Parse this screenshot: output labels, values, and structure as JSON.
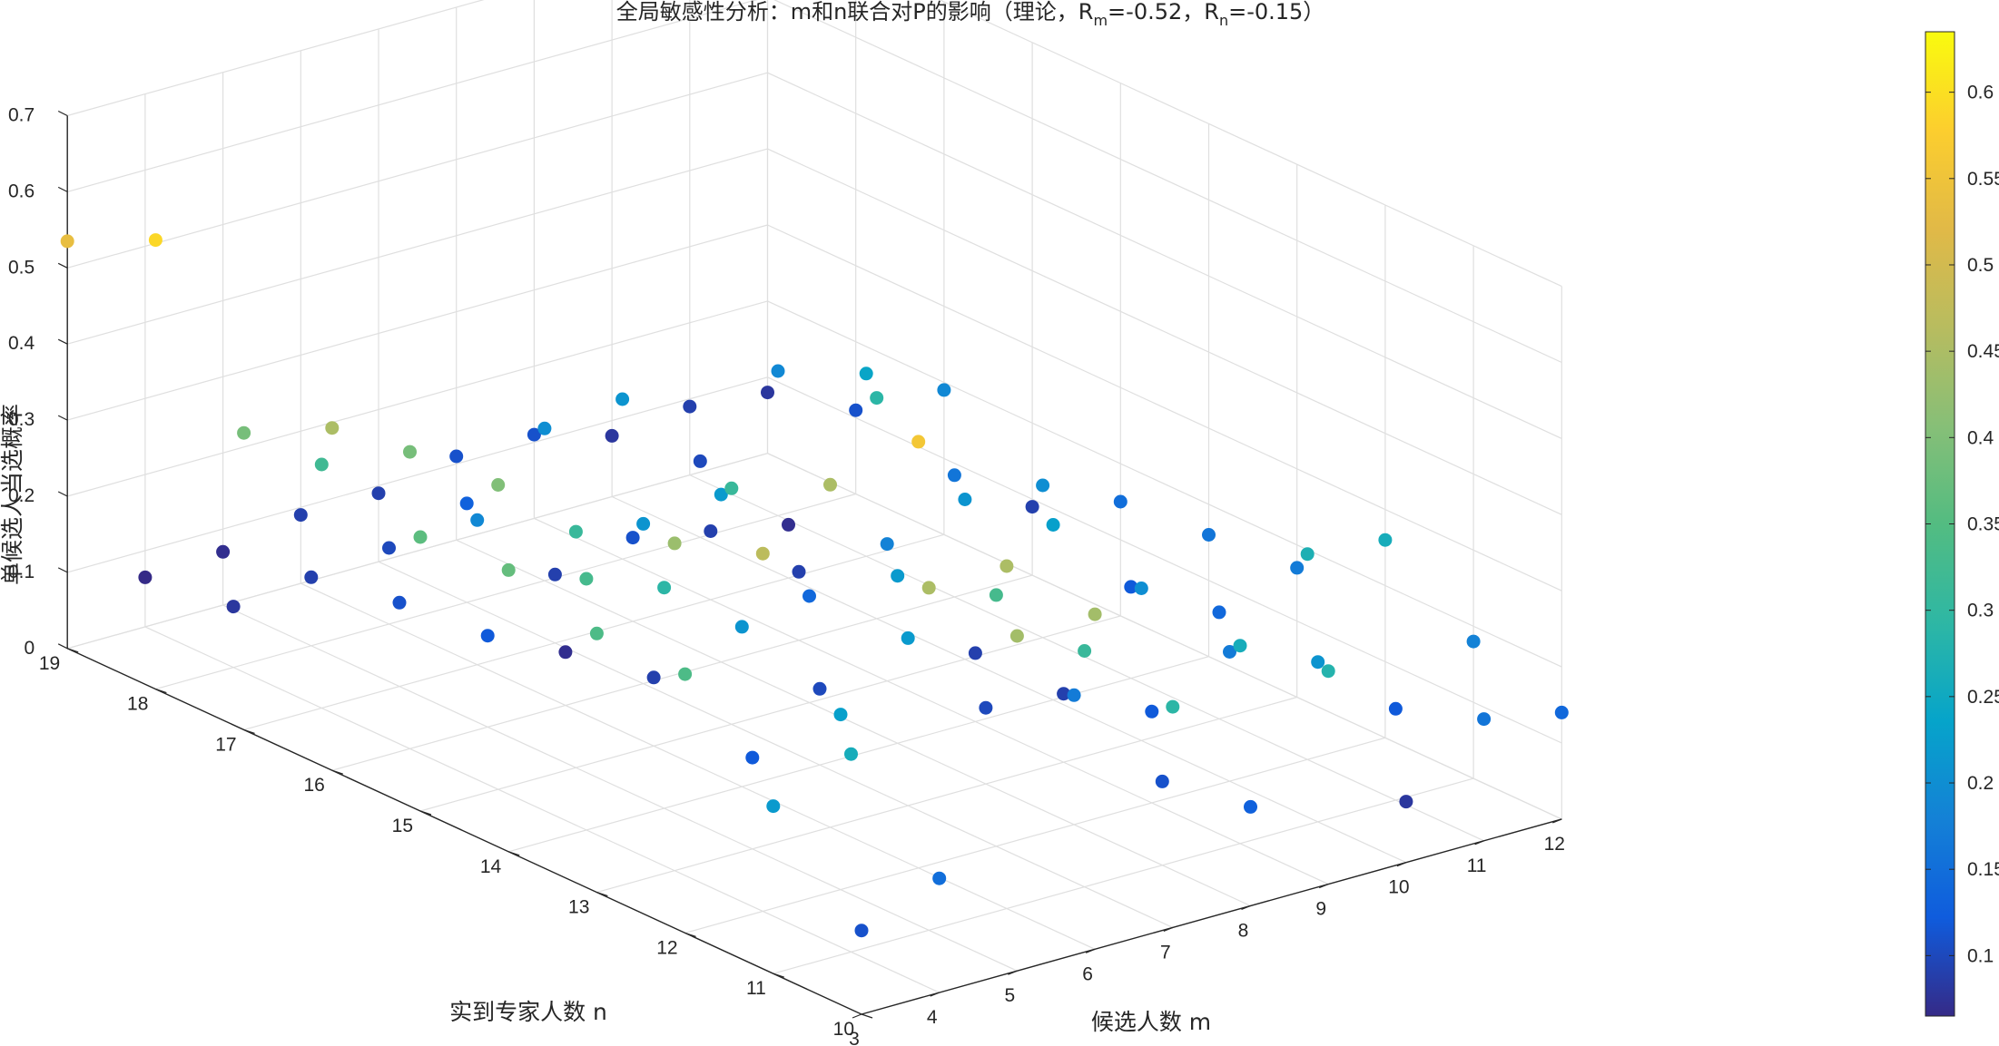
{
  "chart_data": {
    "type": "scatter3d",
    "title": {
      "prefix": "全局敏感性分析：m和n联合对P的影响（理论，R",
      "sub_m": "m",
      "mid": "=-0.52，R",
      "sub_n": "n",
      "suffix": "=-0.15）"
    },
    "xlabel": "候选人数 m",
    "ylabel": "实到专家人数 n",
    "zlabel": "单候选人当选概率",
    "xlim": [
      3,
      12
    ],
    "ylim": [
      10,
      19
    ],
    "zlim": [
      0,
      0.7
    ],
    "x_ticks": [
      "3",
      "4",
      "5",
      "6",
      "7",
      "8",
      "9",
      "10",
      "11",
      "12"
    ],
    "y_ticks": [
      "10",
      "11",
      "12",
      "13",
      "14",
      "15",
      "16",
      "17",
      "18",
      "19"
    ],
    "z_ticks": [
      "0",
      "0.1",
      "0.2",
      "0.3",
      "0.4",
      "0.5",
      "0.6",
      "0.7"
    ],
    "grid": true,
    "colormap": "parula",
    "colorbar": {
      "location": "right",
      "range": [
        0.065,
        0.635
      ],
      "ticks": [
        "0.1",
        "0.15",
        "0.2",
        "0.25",
        "0.3",
        "0.35",
        "0.4",
        "0.45",
        "0.5",
        "0.55",
        "0.6"
      ]
    },
    "points": [
      [
        3,
        19,
        0.535
      ],
      [
        3,
        18,
        0.59
      ],
      [
        3,
        17,
        0.39
      ],
      [
        3,
        16,
        0.45
      ],
      [
        3,
        15,
        0.36
      ],
      [
        3,
        14,
        0.37
      ],
      [
        3,
        13,
        0.34
      ],
      [
        3,
        12,
        0.34
      ],
      [
        3,
        11,
        0.22
      ],
      [
        3,
        10,
        0.11
      ],
      [
        4,
        19,
        0.065
      ],
      [
        4,
        18,
        0.08
      ],
      [
        4,
        17,
        0.32
      ],
      [
        4,
        16,
        0.39
      ],
      [
        4,
        15,
        0.4
      ],
      [
        4,
        14,
        0.33
      ],
      [
        4,
        13,
        0.43
      ],
      [
        4,
        12,
        0.47
      ],
      [
        4,
        11,
        0.26
      ],
      [
        4,
        10,
        0.15
      ],
      [
        5,
        19,
        0.07
      ],
      [
        5,
        18,
        0.09
      ],
      [
        5,
        17,
        0.11
      ],
      [
        5,
        16,
        0.12
      ],
      [
        5,
        15,
        0.31
      ],
      [
        5,
        14,
        0.29
      ],
      [
        5,
        13,
        0.12
      ],
      [
        5,
        12,
        0.23
      ],
      [
        5,
        11,
        0.45
      ],
      [
        5,
        10,
        0.44
      ],
      [
        6,
        19,
        0.09
      ],
      [
        6,
        18,
        0.1
      ],
      [
        6,
        17,
        0.19
      ],
      [
        6,
        16,
        0.07
      ],
      [
        6,
        15,
        0.09
      ],
      [
        6,
        14,
        0.21
      ],
      [
        6,
        13,
        0.45
      ],
      [
        6,
        12,
        0.56
      ],
      [
        6,
        11,
        0.45
      ],
      [
        6,
        10,
        0.44
      ],
      [
        7,
        19,
        0.09
      ],
      [
        7,
        18,
        0.13
      ],
      [
        7,
        17,
        0.09
      ],
      [
        7,
        16,
        0.21
      ],
      [
        7,
        15,
        0.31
      ],
      [
        7,
        14,
        0.1
      ],
      [
        7,
        13,
        0.22
      ],
      [
        7,
        12,
        0.33
      ],
      [
        7,
        11,
        0.31
      ],
      [
        7,
        10,
        0.29
      ],
      [
        8,
        19,
        0.11
      ],
      [
        8,
        18,
        0.2
      ],
      [
        8,
        17,
        0.11
      ],
      [
        8,
        16,
        0.22
      ],
      [
        8,
        15,
        0.14
      ],
      [
        8,
        14,
        0.22
      ],
      [
        8,
        13,
        0.1
      ],
      [
        8,
        12,
        0.17
      ],
      [
        8,
        11,
        0.11
      ],
      [
        8,
        10,
        0.13
      ],
      [
        9,
        19,
        0.11
      ],
      [
        9,
        18,
        0.21
      ],
      [
        9,
        17,
        0.09
      ],
      [
        9,
        16,
        0.09
      ],
      [
        9,
        15,
        0.18
      ],
      [
        9,
        14,
        0.09
      ],
      [
        9,
        13,
        0.09
      ],
      [
        9,
        12,
        0.12
      ],
      [
        9,
        11,
        0.26
      ],
      [
        9,
        10,
        0.28
      ],
      [
        10,
        19,
        0.08
      ],
      [
        10,
        18,
        0.1
      ],
      [
        10,
        17,
        0.07
      ],
      [
        10,
        16,
        0.29
      ],
      [
        10,
        15,
        0.21
      ],
      [
        10,
        14,
        0.23
      ],
      [
        10,
        13,
        0.2
      ],
      [
        10,
        12,
        0.17
      ],
      [
        10,
        11,
        0.21
      ],
      [
        10,
        10,
        0.08
      ],
      [
        11,
        19,
        0.09
      ],
      [
        11,
        18,
        0.19
      ],
      [
        11,
        17,
        0.24
      ],
      [
        11,
        16,
        0.16
      ],
      [
        11,
        15,
        0.2
      ],
      [
        11,
        14,
        0.12
      ],
      [
        11,
        13,
        0.14
      ],
      [
        11,
        12,
        0.27
      ],
      [
        11,
        11,
        0.12
      ],
      [
        11,
        10,
        0.16
      ],
      [
        12,
        19,
        0.08
      ],
      [
        12,
        18,
        0.11
      ],
      [
        12,
        17,
        0.19
      ],
      [
        12,
        16,
        0.09
      ],
      [
        12,
        15,
        0.15
      ],
      [
        12,
        14,
        0.16
      ],
      [
        12,
        13,
        0.17
      ],
      [
        12,
        12,
        0.26
      ],
      [
        12,
        11,
        0.18
      ],
      [
        12,
        10,
        0.14
      ]
    ]
  }
}
